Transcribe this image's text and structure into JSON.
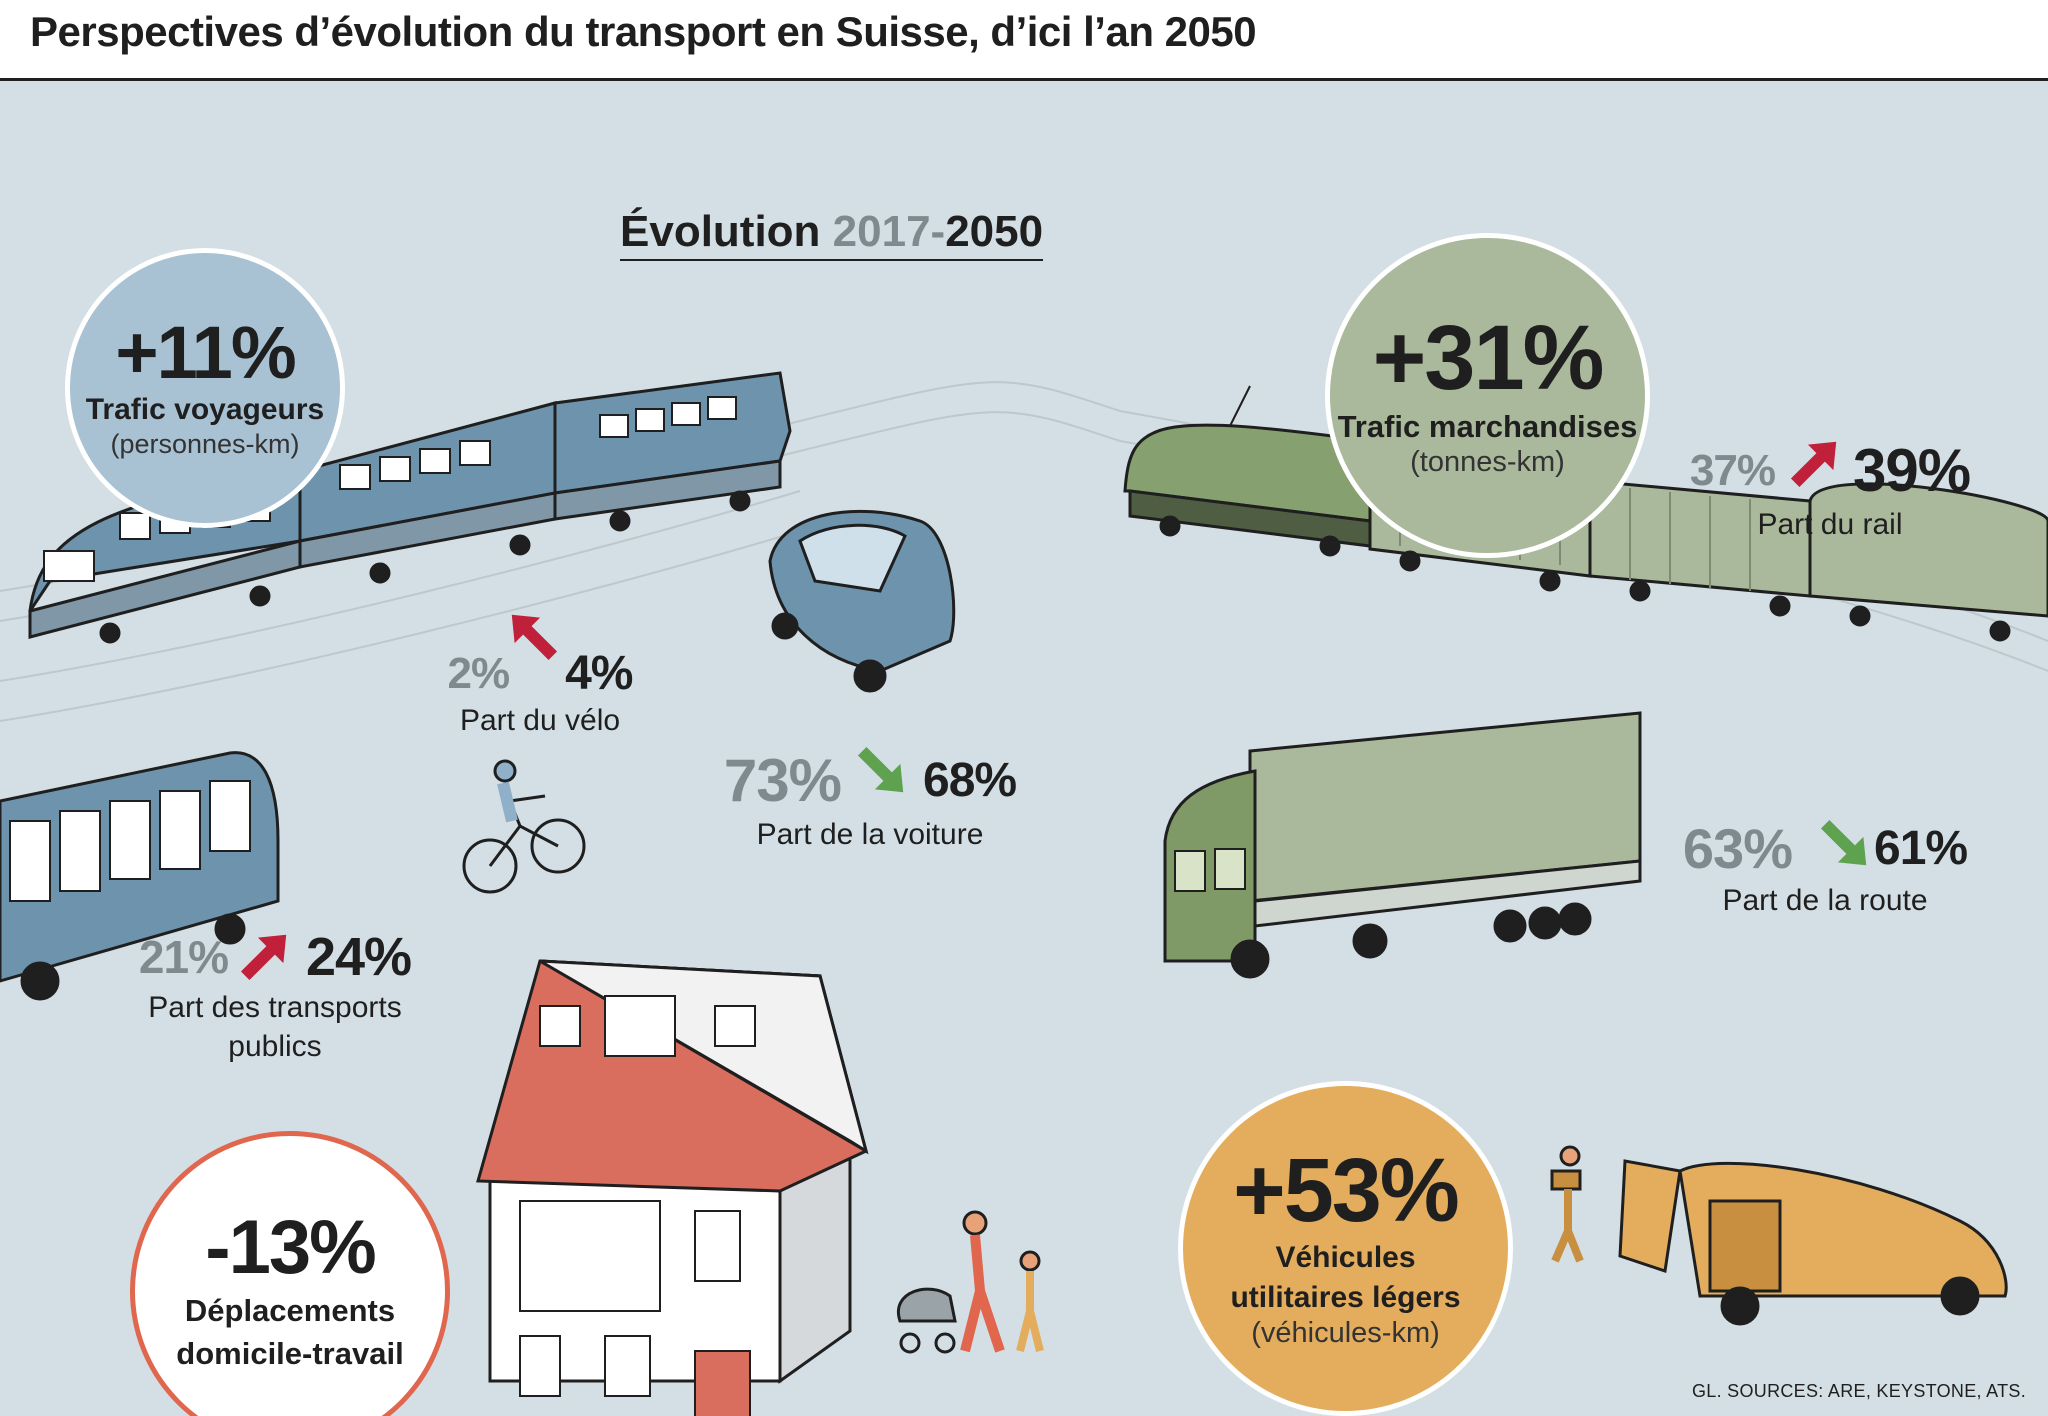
{
  "header": {
    "title": "Perspectives d’évolution du transport en Suisse, d’ici l’an 2050"
  },
  "evolution": {
    "prefix": "Évolution ",
    "year_from": "2017",
    "dash": "-",
    "year_to": "2050"
  },
  "circles": {
    "voyageurs": {
      "value": "+11%",
      "label": "Trafic voyageurs",
      "unit": "(personnes-km)",
      "color": "#a8c2d4"
    },
    "marchandises": {
      "value": "+31%",
      "label": "Trafic marchandises",
      "unit": "(tonnes-km)",
      "color": "#aab89b"
    },
    "domicile": {
      "value": "-13%",
      "label_1": "Déplacements",
      "label_2": "domicile-travail",
      "color": "#e0664e"
    },
    "utilitaires": {
      "value": "+53%",
      "label_1": "Véhicules",
      "label_2": "utilitaires légers",
      "unit": "(véhicules-km)",
      "color": "#e3ad5d"
    }
  },
  "shares": {
    "velo": {
      "from": "2%",
      "to": "4%",
      "label": "Part du vélo",
      "trend": "up"
    },
    "voiture": {
      "from": "73%",
      "to": "68%",
      "label": "Part de la voiture",
      "trend": "down"
    },
    "transports_publics": {
      "from": "21%",
      "to": "24%",
      "label_1": "Part des transports",
      "label_2": "publics",
      "trend": "up"
    },
    "rail": {
      "from": "37%",
      "to": "39%",
      "label": "Part du rail",
      "trend": "up"
    },
    "route": {
      "from": "63%",
      "to": "61%",
      "label": "Part de la route",
      "trend": "down"
    }
  },
  "colors": {
    "up_arrow": "#c0203a",
    "down_arrow": "#5ea14e",
    "background": "#d3dfe4"
  },
  "source": "GL.  SOURCES: ARE, KEYSTONE, ATS."
}
